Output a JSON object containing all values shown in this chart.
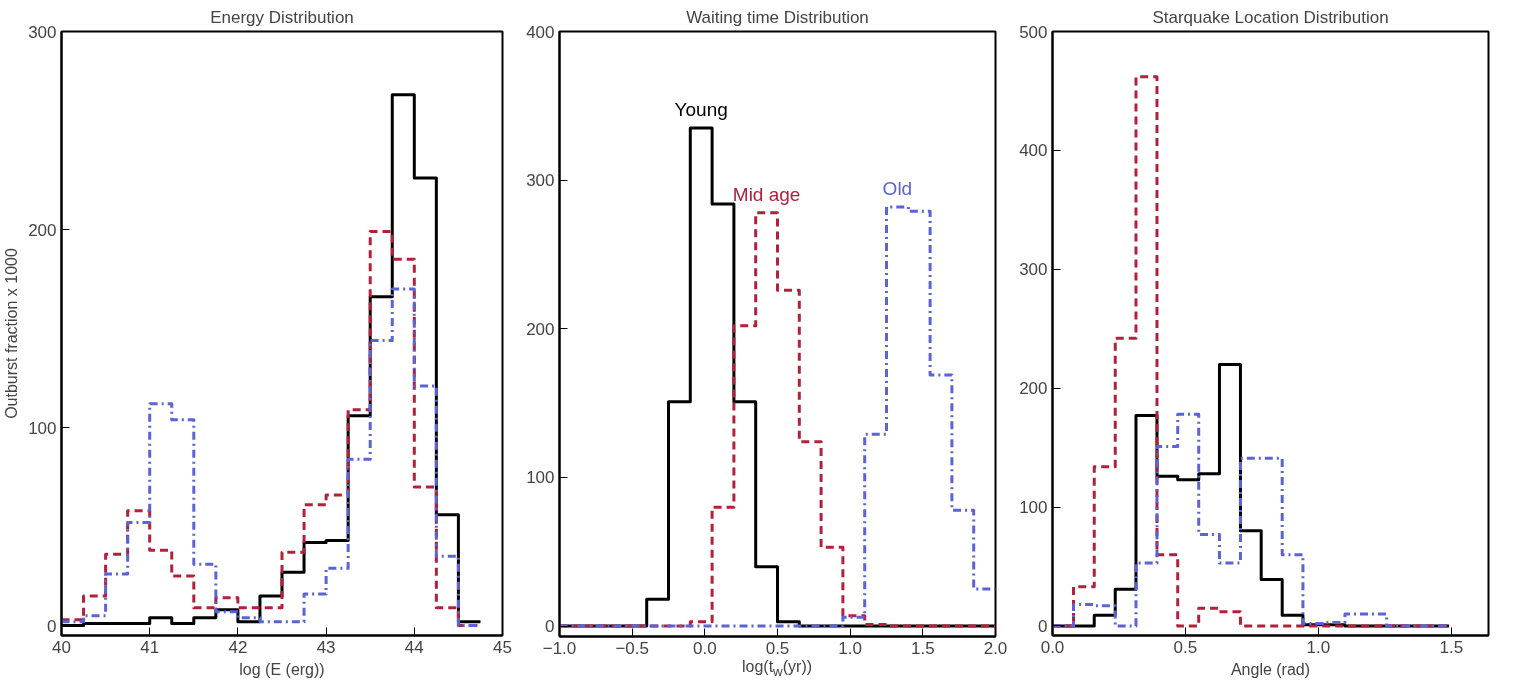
{
  "chart_data": [
    {
      "type": "histogram",
      "title": "Energy Distribution",
      "xlabel": "log (E (erg))",
      "ylabel": "Outburst fraction x 1000",
      "bins": [
        40.0,
        40.25,
        40.5,
        40.75,
        41.0,
        41.25,
        41.5,
        41.75,
        42.0,
        42.25,
        42.5,
        42.75,
        43.0,
        43.25,
        43.5,
        43.75,
        44.0,
        44.25,
        44.5,
        44.75
      ],
      "series": [
        {
          "color": "#000000",
          "line_style": "solid",
          "values": [
            0,
            1,
            1,
            1,
            4,
            1,
            4,
            8,
            2,
            15,
            27,
            42,
            43,
            106,
            166,
            268,
            226,
            56,
            2
          ]
        },
        {
          "color": "#b2203a",
          "line_style": "dashed",
          "values": [
            3,
            15,
            36,
            58,
            38,
            25,
            9,
            14,
            9,
            9,
            37,
            61,
            66,
            109,
            199,
            185,
            70,
            9,
            0
          ]
        },
        {
          "color": "#5b63d6",
          "line_style": "dashdot",
          "values": [
            2,
            5,
            26,
            52,
            112,
            104,
            31,
            7,
            4,
            2,
            2,
            16,
            29,
            84,
            144,
            170,
            121,
            35,
            0
          ]
        }
      ],
      "xlim": [
        40,
        45
      ],
      "xticks": [
        40,
        41,
        42,
        43,
        44,
        45
      ],
      "ylim": [
        -5,
        300
      ],
      "yticks": [
        0,
        100,
        200,
        300
      ],
      "grid": false
    },
    {
      "type": "histogram",
      "title": "Waiting time Distribution",
      "xlabel": "log(t$_{w}$(yr))",
      "bins": [
        -1.0,
        -0.85,
        -0.7,
        -0.55,
        -0.4,
        -0.25,
        -0.1,
        0.05,
        0.2,
        0.35,
        0.5,
        0.65,
        0.8,
        0.95,
        1.1,
        1.25,
        1.4,
        1.55,
        1.7,
        1.85,
        2.0
      ],
      "series": [
        {
          "name": "Young",
          "color": "#000000",
          "line_style": "solid",
          "values": [
            0,
            0,
            0,
            0,
            18,
            151,
            335,
            284,
            151,
            40,
            3,
            0,
            0,
            0,
            0,
            0,
            0,
            0,
            0,
            0
          ]
        },
        {
          "name": "Mid age",
          "color": "#b2203a",
          "line_style": "dashed",
          "values": [
            0,
            0,
            0,
            0,
            0,
            0,
            3,
            80,
            202,
            278,
            226,
            124,
            53,
            7,
            1,
            0,
            0,
            0,
            0,
            0
          ]
        },
        {
          "name": "Old",
          "color": "#5b63d6",
          "line_style": "dashdot",
          "values": [
            0,
            0,
            0,
            0,
            0,
            0,
            0,
            0,
            0,
            0,
            0,
            0,
            0,
            6,
            129,
            282,
            279,
            169,
            78,
            25
          ]
        }
      ],
      "xlim": [
        -1.0,
        2.0
      ],
      "xticks": [
        {
          "value": -1.0,
          "label": "−1.0"
        },
        {
          "value": -0.5,
          "label": "−0.5"
        },
        {
          "value": 0,
          "label": "0.0"
        },
        {
          "value": 0.5,
          "label": "0.5"
        },
        {
          "value": 1.0,
          "label": "1.0"
        },
        {
          "value": 1.5,
          "label": "1.5"
        },
        {
          "value": 2.0,
          "label": "2.0"
        }
      ],
      "ylim": [
        -7,
        400
      ],
      "yticks": [
        0,
        100,
        200,
        300,
        400
      ],
      "grid": false
    },
    {
      "type": "histogram",
      "title": "Starquake Location Distribution",
      "xlabel": "Angle (rad)",
      "bins": [
        0.0,
        0.079,
        0.157,
        0.236,
        0.314,
        0.393,
        0.471,
        0.55,
        0.628,
        0.707,
        0.785,
        0.864,
        0.942,
        1.021,
        1.1,
        1.178,
        1.257,
        1.335,
        1.414,
        1.492
      ],
      "series": [
        {
          "color": "#000000",
          "line_style": "solid",
          "values": [
            0,
            0,
            9,
            31,
            177,
            126,
            123,
            128,
            220,
            80,
            39,
            9,
            1,
            1,
            0,
            0,
            0,
            0,
            0
          ]
        },
        {
          "color": "#b2203a",
          "line_style": "dashed",
          "values": [
            0,
            33,
            134,
            242,
            462,
            60,
            0,
            15,
            12,
            0,
            0,
            0,
            0,
            0,
            0,
            0,
            0,
            0,
            0
          ]
        },
        {
          "color": "#5b63d6",
          "line_style": "dashdot",
          "values": [
            0,
            18,
            17,
            0,
            53,
            151,
            178,
            77,
            53,
            141,
            141,
            60,
            2,
            3,
            10,
            10,
            0,
            0,
            0
          ]
        }
      ],
      "xlim": [
        0,
        1.64
      ],
      "xticks": [
        {
          "value": 0,
          "label": "0.0"
        },
        {
          "value": 0.5,
          "label": "0.5"
        },
        {
          "value": 1.0,
          "label": "1.0"
        },
        {
          "value": 1.5,
          "label": "1.5"
        }
      ],
      "ylim": [
        -8,
        500
      ],
      "yticks": [
        0,
        100,
        200,
        300,
        400,
        500
      ],
      "grid": false
    }
  ]
}
